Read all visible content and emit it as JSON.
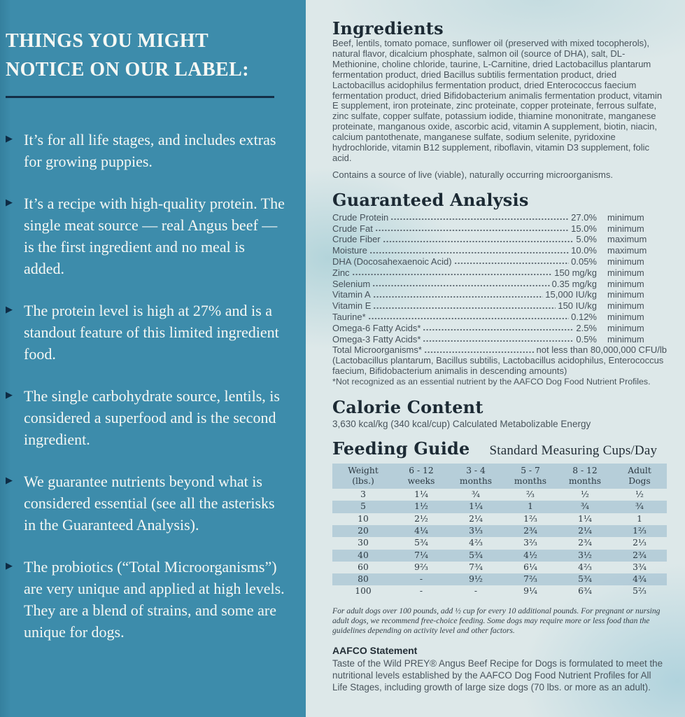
{
  "palette": {
    "left_panel_bg": "#3d8cab",
    "right_panel_bg": "#dde8e9",
    "table_band": "rgba(143,179,201,0.50)",
    "heading_ink": "#1c2a34",
    "divider_navy": "#132e47"
  },
  "left_panel": {
    "title": "THINGS YOU MIGHT NOTICE ON OUR LABEL:",
    "bullets": [
      "It’s for all life stages, and includes extras for growing puppies.",
      "It’s a recipe with high-quality protein. The single meat source — real Angus beef — is the first ingredient and no meal is added.",
      "The protein level is high at 27% and is a standout feature of this limited ingredient food.",
      "The single carbohydrate source, lentils, is considered a superfood and is the second ingredient.",
      "We guarantee nutrients beyond what is considered essential (see all the asterisks in the Guaranteed Analysis).",
      "The probiotics (“Total Microorganisms”) are very unique and applied at high levels. They are a blend of strains, and some are unique for dogs."
    ]
  },
  "ingredients": {
    "heading": "Ingredients",
    "body": "Beef, lentils, tomato pomace, sunflower oil (preserved with mixed tocopherols), natural flavor, dicalcium phosphate, salmon oil (source of DHA), salt, DL-Methionine, choline chloride, taurine, L-Carnitine, dried Lactobacillus plantarum fermentation product, dried Bacillus subtilis fermentation product, dried Lactobacillus acidophilus fermentation product, dried Enterococcus faecium fermentation product, dried Bifidobacterium animalis fermentation product, vitamin E supplement, iron proteinate, zinc proteinate, copper proteinate, ferrous sulfate, zinc sulfate, copper sulfate, potassium iodide, thiamine mononitrate, manganese proteinate, manganous oxide, ascorbic acid, vitamin A supplement, biotin, niacin, calcium pantothenate, manganese sulfate, sodium selenite, pyridoxine hydrochloride, vitamin B12 supplement, riboflavin, vitamin D3 supplement, folic acid.",
    "note": "Contains a source of live (viable), naturally occurring microorganisms."
  },
  "guaranteed_analysis": {
    "heading": "Guaranteed Analysis",
    "rows": [
      {
        "label": "Crude Protein",
        "value": "27.0%",
        "qual": "minimum"
      },
      {
        "label": "Crude Fat",
        "value": "15.0%",
        "qual": "minimum"
      },
      {
        "label": "Crude Fiber",
        "value": "5.0%",
        "qual": "maximum"
      },
      {
        "label": "Moisture",
        "value": "10.0%",
        "qual": "maximum"
      },
      {
        "label": "DHA (Docosahexaenoic Acid)",
        "value": "0.05%",
        "qual": "minimum"
      },
      {
        "label": "Zinc",
        "value": "150 mg/kg",
        "qual": "minimum"
      },
      {
        "label": "Selenium",
        "value": "0.35 mg/kg",
        "qual": "minimum"
      },
      {
        "label": "Vitamin A",
        "value": "15,000 IU/kg",
        "qual": "minimum"
      },
      {
        "label": "Vitamin E",
        "value": "150 IU/kg",
        "qual": "minimum"
      },
      {
        "label": "Taurine*",
        "value": "0.12%",
        "qual": "minimum"
      },
      {
        "label": "Omega-6 Fatty Acids*",
        "value": "2.5%",
        "qual": "minimum"
      },
      {
        "label": "Omega-3 Fatty Acids*",
        "value": "0.5%",
        "qual": "minimum"
      }
    ],
    "total_label": "Total Microorganisms*",
    "total_value": "not less than 80,000,000 CFU/lb",
    "strains_note": "(Lactobacillus plantarum, Bacillus subtilis, Lactobacillus acidophilus, Enterococcus faecium, Bifidobacterium animalis in descending amounts)",
    "asterisk_note": "*Not recognized as an essential nutrient by the AAFCO Dog Food Nutrient Profiles."
  },
  "calorie": {
    "heading": "Calorie Content",
    "body": "3,630 kcal/kg (340 kcal/cup) Calculated Metabolizable Energy"
  },
  "feeding_guide": {
    "heading": "Feeding Guide",
    "subheading": "Standard Measuring Cups/Day",
    "columns": [
      {
        "l1": "Weight",
        "l2": "(lbs.)"
      },
      {
        "l1": "6 - 12",
        "l2": "weeks"
      },
      {
        "l1": "3 - 4",
        "l2": "months"
      },
      {
        "l1": "5 - 7",
        "l2": "months"
      },
      {
        "l1": "8 - 12",
        "l2": "months"
      },
      {
        "l1": "Adult",
        "l2": "Dogs"
      }
    ],
    "rows": [
      [
        "3",
        "1¼",
        "¾",
        "⅔",
        "½",
        "½"
      ],
      [
        "5",
        "1½",
        "1¼",
        "1",
        "¾",
        "¾"
      ],
      [
        "10",
        "2½",
        "2¼",
        "1⅔",
        "1¼",
        "1"
      ],
      [
        "20",
        "4¼",
        "3⅓",
        "2¾",
        "2¼",
        "1⅔"
      ],
      [
        "30",
        "5¾",
        "4⅔",
        "3⅔",
        "2¾",
        "2⅓"
      ],
      [
        "40",
        "7¼",
        "5¾",
        "4½",
        "3½",
        "2¾"
      ],
      [
        "60",
        "9⅔",
        "7¾",
        "6¼",
        "4⅔",
        "3¾"
      ],
      [
        "80",
        "-",
        "9½",
        "7⅔",
        "5¾",
        "4¾"
      ],
      [
        "100",
        "-",
        "-",
        "9¼",
        "6¾",
        "5⅔"
      ]
    ],
    "footnote": "For adult dogs over 100 pounds, add ½ cup for every 10 additional pounds. For pregnant or nursing adult dogs, we recommend free-choice feeding. Some dogs may require more or less food than the guidelines depending on activity level and other factors."
  },
  "aafco": {
    "heading": "AAFCO Statement",
    "body": "Taste of the Wild PREY® Angus Beef Recipe for Dogs is formulated to meet the nutritional levels established by the AAFCO Dog Food Nutrient Profiles for All Life Stages, including growth of large size dogs (70 lbs. or more as an adult)."
  }
}
